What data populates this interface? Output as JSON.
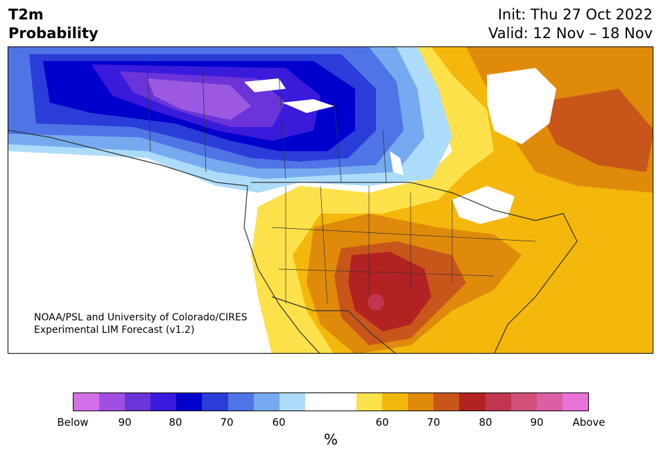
{
  "header": {
    "title_line1": "T2m",
    "title_line2": "Probability",
    "init": "Init: Thu 27 Oct 2022",
    "valid": "Valid: 12 Nov – 18 Nov"
  },
  "credit": {
    "line1": "NOAA/PSL and University of Colorado/CIRES",
    "line2": "Experimental LIM Forecast (v1.2)"
  },
  "colorbar": {
    "colors": [
      "#d36fe8",
      "#9f4fe0",
      "#6b34d8",
      "#3a1bdc",
      "#0000cd",
      "#2a3dd8",
      "#4f74e6",
      "#76aaf0",
      "#addcfa",
      "#ffffff",
      "#ffffff",
      "#fde14a",
      "#f3b80b",
      "#e08a0c",
      "#c8561a",
      "#b22222",
      "#c0354f",
      "#d0507a",
      "#db5fa6",
      "#e773d9"
    ],
    "tick_labels": [
      "Below",
      "90",
      "80",
      "70",
      "60",
      "60",
      "70",
      "80",
      "90",
      "Above"
    ],
    "unit_label": "%"
  },
  "map": {
    "region": "North America",
    "palette": {
      "below_strong": "#9b59e2",
      "below_80": "#3a1bdc",
      "below_70": "#2a3dd8",
      "below_65": "#4f74e6",
      "below_60": "#76aaf0",
      "below_55": "#addcfa",
      "above_55": "#fde14a",
      "above_60": "#f3b80b",
      "above_65": "#e08a0c",
      "above_70": "#c8561a",
      "above_80": "#b22222",
      "above_85": "#c0354f",
      "lakes": "#ffffff",
      "borders": "#333333"
    }
  }
}
